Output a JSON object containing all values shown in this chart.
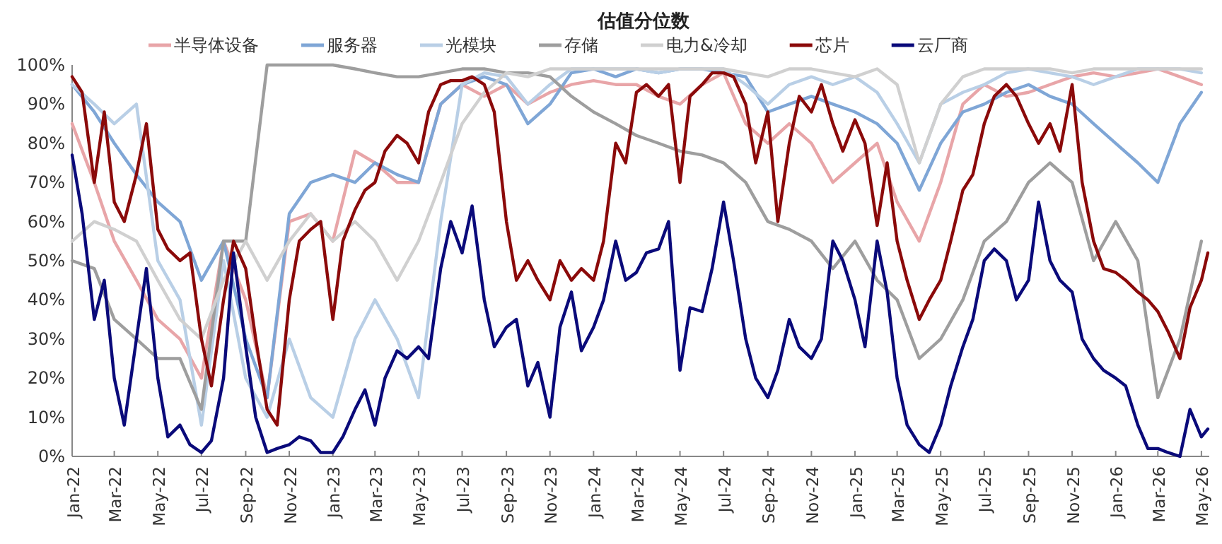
{
  "chart_data": {
    "type": "line",
    "title": "估值分位数",
    "legend": "top",
    "x": [
      "2022-01-01",
      "2022-02-01",
      "2022-03-01",
      "2022-04-01",
      "2022-05-01",
      "2022-06-01",
      "2022-07-01",
      "2022-08-01",
      "2022-09-01",
      "2022-10-01",
      "2022-11-01",
      "2022-12-01",
      "2023-01-01",
      "2023-02-01",
      "2023-03-01",
      "2023-04-01",
      "2023-05-01",
      "2023-06-01",
      "2023-07-01",
      "2023-08-01",
      "2023-09-01",
      "2023-10-01",
      "2023-11-01",
      "2023-12-01",
      "2024-01-01",
      "2024-02-01",
      "2024-03-01",
      "2024-04-01",
      "2024-05-01",
      "2024-06-01",
      "2024-07-01",
      "2024-08-01",
      "2024-09-01",
      "2024-10-01",
      "2024-11-01",
      "2024-12-01",
      "2025-01-01",
      "2025-02-01",
      "2025-03-01",
      "2025-04-01",
      "2025-05-01",
      "2025-06-01",
      "2025-07-01",
      "2025-08-01",
      "2025-09-01",
      "2025-10-01",
      "2025-11-01",
      "2025-12-01",
      "2026-01-01",
      "2026-02-01",
      "2026-03-01",
      "2026-04-01",
      "2026-05-01"
    ],
    "xlim": [
      "2022-01-01",
      "2026-05-12"
    ],
    "xticks": [
      {
        "value": "2022-01-01",
        "label": "Jan-22"
      },
      {
        "value": "2022-03-01",
        "label": "Mar-22"
      },
      {
        "value": "2022-05-01",
        "label": "May-22"
      },
      {
        "value": "2022-07-01",
        "label": "Jul-22"
      },
      {
        "value": "2022-09-01",
        "label": "Sep-22"
      },
      {
        "value": "2022-11-01",
        "label": "Nov-22"
      },
      {
        "value": "2023-01-01",
        "label": "Jan-23"
      },
      {
        "value": "2023-03-01",
        "label": "Mar-23"
      },
      {
        "value": "2023-05-01",
        "label": "May-23"
      },
      {
        "value": "2023-07-01",
        "label": "Jul-23"
      },
      {
        "value": "2023-09-01",
        "label": "Sep-23"
      },
      {
        "value": "2023-11-01",
        "label": "Nov-23"
      },
      {
        "value": "2024-01-01",
        "label": "Jan-24"
      },
      {
        "value": "2024-03-01",
        "label": "Mar-24"
      },
      {
        "value": "2024-05-01",
        "label": "May-24"
      },
      {
        "value": "2024-07-01",
        "label": "Jul-24"
      },
      {
        "value": "2024-09-01",
        "label": "Sep-24"
      },
      {
        "value": "2024-11-01",
        "label": "Nov-24"
      },
      {
        "value": "2025-01-01",
        "label": "Jan-25"
      },
      {
        "value": "2025-03-01",
        "label": "Mar-25"
      },
      {
        "value": "2025-05-01",
        "label": "May-25"
      },
      {
        "value": "2025-07-01",
        "label": "Jul-25"
      },
      {
        "value": "2025-09-01",
        "label": "Sep-25"
      },
      {
        "value": "2025-11-01",
        "label": "Nov-25"
      },
      {
        "value": "2026-01-01",
        "label": "Jan-26"
      },
      {
        "value": "2026-03-01",
        "label": "Mar-26"
      },
      {
        "value": "2026-05-01",
        "label": "May-26"
      }
    ],
    "ylim": [
      0,
      100
    ],
    "yticks": [
      {
        "value": 0,
        "label": "0%"
      },
      {
        "value": 10,
        "label": "10%"
      },
      {
        "value": 20,
        "label": "20%"
      },
      {
        "value": 30,
        "label": "30%"
      },
      {
        "value": 40,
        "label": "40%"
      },
      {
        "value": 50,
        "label": "50%"
      },
      {
        "value": 60,
        "label": "60%"
      },
      {
        "value": 70,
        "label": "70%"
      },
      {
        "value": 80,
        "label": "80%"
      },
      {
        "value": 90,
        "label": "90%"
      },
      {
        "value": 100,
        "label": "100%"
      }
    ],
    "series": [
      {
        "name": "半导体设备",
        "color": "#e8a5a8",
        "values": [
          85,
          70,
          55,
          45,
          35,
          30,
          20,
          55,
          40,
          15,
          60,
          62,
          55,
          78,
          75,
          70,
          70,
          90,
          95,
          92,
          95,
          90,
          93,
          95,
          96,
          95,
          95,
          92,
          90,
          95,
          98,
          85,
          80,
          85,
          80,
          70,
          75,
          80,
          65,
          55,
          70,
          90,
          95,
          92,
          93,
          95,
          97,
          98,
          97,
          98,
          99,
          97,
          95
        ]
      },
      {
        "name": "服务器",
        "color": "#7fa6d6",
        "values": [
          95,
          88,
          80,
          72,
          65,
          60,
          45,
          55,
          30,
          15,
          62,
          70,
          72,
          70,
          75,
          72,
          70,
          90,
          95,
          97,
          95,
          85,
          90,
          98,
          99,
          97,
          99,
          98,
          99,
          99,
          98,
          97,
          88,
          90,
          92,
          90,
          88,
          85,
          80,
          68,
          80,
          88,
          90,
          93,
          95,
          92,
          90,
          85,
          80,
          75,
          70,
          85,
          93
        ]
      },
      {
        "name": "光模块",
        "color": "#b9cfe6",
        "values": [
          95,
          90,
          85,
          90,
          50,
          40,
          8,
          50,
          20,
          10,
          30,
          15,
          10,
          30,
          40,
          30,
          15,
          60,
          95,
          98,
          97,
          90,
          95,
          99,
          99,
          99,
          99,
          98,
          99,
          99,
          99,
          95,
          90,
          95,
          97,
          95,
          97,
          93,
          85,
          75,
          90,
          93,
          95,
          98,
          99,
          98,
          97,
          95,
          97,
          99,
          99,
          99,
          98
        ]
      },
      {
        "name": "存储",
        "color": "#9e9e9e",
        "values": [
          50,
          48,
          35,
          30,
          25,
          25,
          12,
          55,
          55,
          100,
          100,
          100,
          100,
          99,
          98,
          97,
          97,
          98,
          99,
          99,
          98,
          98,
          97,
          92,
          88,
          85,
          82,
          80,
          78,
          77,
          75,
          70,
          60,
          58,
          55,
          48,
          55,
          45,
          40,
          25,
          30,
          40,
          55,
          60,
          70,
          75,
          70,
          50,
          60,
          50,
          15,
          30,
          55
        ]
      },
      {
        "name": "电力&冷却",
        "color": "#d0d0d0",
        "values": [
          55,
          60,
          58,
          55,
          45,
          35,
          30,
          45,
          55,
          45,
          55,
          62,
          55,
          60,
          55,
          45,
          55,
          70,
          85,
          93,
          98,
          97,
          99,
          99,
          99,
          99,
          99,
          99,
          99,
          99,
          99,
          98,
          97,
          99,
          99,
          98,
          97,
          99,
          95,
          75,
          90,
          97,
          99,
          99,
          99,
          99,
          98,
          99,
          99,
          99,
          99,
          99,
          99
        ]
      },
      {
        "name": "芯片",
        "color": "#8b0a0a",
        "x": [
          "2022-01-01",
          "2022-01-15",
          "2022-02-01",
          "2022-02-15",
          "2022-03-01",
          "2022-03-15",
          "2022-04-01",
          "2022-04-15",
          "2022-05-01",
          "2022-05-15",
          "2022-06-01",
          "2022-06-15",
          "2022-07-01",
          "2022-07-15",
          "2022-08-01",
          "2022-08-15",
          "2022-09-01",
          "2022-09-15",
          "2022-10-01",
          "2022-10-15",
          "2022-11-01",
          "2022-11-15",
          "2022-12-01",
          "2022-12-15",
          "2023-01-01",
          "2023-01-15",
          "2023-02-01",
          "2023-02-15",
          "2023-03-01",
          "2023-03-15",
          "2023-04-01",
          "2023-04-15",
          "2023-05-01",
          "2023-05-15",
          "2023-06-01",
          "2023-06-15",
          "2023-07-01",
          "2023-07-15",
          "2023-08-01",
          "2023-08-15",
          "2023-09-01",
          "2023-09-15",
          "2023-10-01",
          "2023-10-15",
          "2023-11-01",
          "2023-11-15",
          "2023-12-01",
          "2023-12-15",
          "2024-01-01",
          "2024-01-15",
          "2024-02-01",
          "2024-02-15",
          "2024-03-01",
          "2024-03-15",
          "2024-04-01",
          "2024-04-15",
          "2024-05-01",
          "2024-05-15",
          "2024-06-01",
          "2024-06-15",
          "2024-07-01",
          "2024-07-15",
          "2024-08-01",
          "2024-08-15",
          "2024-09-01",
          "2024-09-15",
          "2024-10-01",
          "2024-10-15",
          "2024-11-01",
          "2024-11-15",
          "2024-12-01",
          "2024-12-15",
          "2025-01-01",
          "2025-01-15",
          "2025-02-01",
          "2025-02-15",
          "2025-03-01",
          "2025-03-15",
          "2025-04-01",
          "2025-04-15",
          "2025-05-01",
          "2025-05-15",
          "2025-06-01",
          "2025-06-15",
          "2025-07-01",
          "2025-07-15",
          "2025-08-01",
          "2025-08-15",
          "2025-09-01",
          "2025-09-15",
          "2025-10-01",
          "2025-10-15",
          "2025-11-01",
          "2025-11-15",
          "2025-12-01",
          "2025-12-15",
          "2026-01-01",
          "2026-01-15",
          "2026-02-01",
          "2026-02-15",
          "2026-03-01",
          "2026-03-15",
          "2026-04-01",
          "2026-04-15",
          "2026-05-01",
          "2026-05-10"
        ],
        "values": [
          97,
          93,
          70,
          88,
          65,
          60,
          72,
          85,
          58,
          53,
          50,
          52,
          30,
          18,
          40,
          55,
          48,
          30,
          12,
          8,
          40,
          55,
          58,
          60,
          35,
          55,
          63,
          68,
          70,
          78,
          82,
          80,
          75,
          88,
          95,
          96,
          96,
          97,
          95,
          88,
          60,
          45,
          50,
          45,
          40,
          50,
          45,
          48,
          45,
          55,
          80,
          75,
          93,
          95,
          92,
          95,
          70,
          92,
          95,
          98,
          98,
          97,
          90,
          75,
          88,
          60,
          80,
          92,
          88,
          95,
          85,
          78,
          86,
          80,
          59,
          75,
          55,
          45,
          35,
          40,
          45,
          55,
          68,
          72,
          85,
          92,
          95,
          92,
          85,
          80,
          85,
          78,
          95,
          70,
          55,
          48,
          47,
          45,
          42,
          40,
          37,
          32,
          25,
          38,
          45,
          52
        ]
      },
      {
        "name": "云厂商",
        "color": "#0a0a7a",
        "x": [
          "2022-01-01",
          "2022-01-15",
          "2022-02-01",
          "2022-02-15",
          "2022-03-01",
          "2022-03-15",
          "2022-04-01",
          "2022-04-15",
          "2022-05-01",
          "2022-05-15",
          "2022-06-01",
          "2022-06-15",
          "2022-07-01",
          "2022-07-15",
          "2022-08-01",
          "2022-08-15",
          "2022-09-01",
          "2022-09-15",
          "2022-10-01",
          "2022-10-15",
          "2022-11-01",
          "2022-11-15",
          "2022-12-01",
          "2022-12-15",
          "2023-01-01",
          "2023-01-15",
          "2023-02-01",
          "2023-02-15",
          "2023-03-01",
          "2023-03-15",
          "2023-04-01",
          "2023-04-15",
          "2023-05-01",
          "2023-05-15",
          "2023-06-01",
          "2023-06-15",
          "2023-07-01",
          "2023-07-15",
          "2023-08-01",
          "2023-08-15",
          "2023-09-01",
          "2023-09-15",
          "2023-10-01",
          "2023-10-15",
          "2023-11-01",
          "2023-11-15",
          "2023-12-01",
          "2023-12-15",
          "2024-01-01",
          "2024-01-15",
          "2024-02-01",
          "2024-02-15",
          "2024-03-01",
          "2024-03-15",
          "2024-04-01",
          "2024-04-15",
          "2024-05-01",
          "2024-05-15",
          "2024-06-01",
          "2024-06-15",
          "2024-07-01",
          "2024-07-15",
          "2024-08-01",
          "2024-08-15",
          "2024-09-01",
          "2024-09-15",
          "2024-10-01",
          "2024-10-15",
          "2024-11-01",
          "2024-11-15",
          "2024-12-01",
          "2024-12-15",
          "2025-01-01",
          "2025-01-15",
          "2025-02-01",
          "2025-02-15",
          "2025-03-01",
          "2025-03-15",
          "2025-04-01",
          "2025-04-15",
          "2025-05-01",
          "2025-05-15",
          "2025-06-01",
          "2025-06-15",
          "2025-07-01",
          "2025-07-15",
          "2025-08-01",
          "2025-08-15",
          "2025-09-01",
          "2025-09-15",
          "2025-10-01",
          "2025-10-15",
          "2025-11-01",
          "2025-11-15",
          "2025-12-01",
          "2025-12-15",
          "2026-01-01",
          "2026-01-15",
          "2026-02-01",
          "2026-02-15",
          "2026-03-01",
          "2026-03-15",
          "2026-04-01",
          "2026-04-15",
          "2026-05-01",
          "2026-05-10"
        ],
        "values": [
          77,
          62,
          35,
          45,
          20,
          8,
          30,
          48,
          20,
          5,
          8,
          3,
          1,
          4,
          20,
          52,
          28,
          10,
          1,
          2,
          3,
          5,
          4,
          1,
          1,
          5,
          12,
          17,
          8,
          20,
          27,
          25,
          28,
          25,
          48,
          60,
          52,
          64,
          40,
          28,
          33,
          35,
          18,
          24,
          10,
          33,
          42,
          27,
          33,
          40,
          55,
          45,
          47,
          52,
          53,
          60,
          22,
          38,
          37,
          48,
          65,
          50,
          30,
          20,
          15,
          22,
          35,
          28,
          25,
          30,
          55,
          50,
          40,
          28,
          55,
          42,
          20,
          8,
          3,
          1,
          8,
          18,
          28,
          35,
          50,
          53,
          50,
          40,
          45,
          65,
          50,
          45,
          42,
          30,
          25,
          22,
          20,
          18,
          8,
          2,
          2,
          1,
          0,
          12,
          5,
          7
        ]
      }
    ]
  }
}
